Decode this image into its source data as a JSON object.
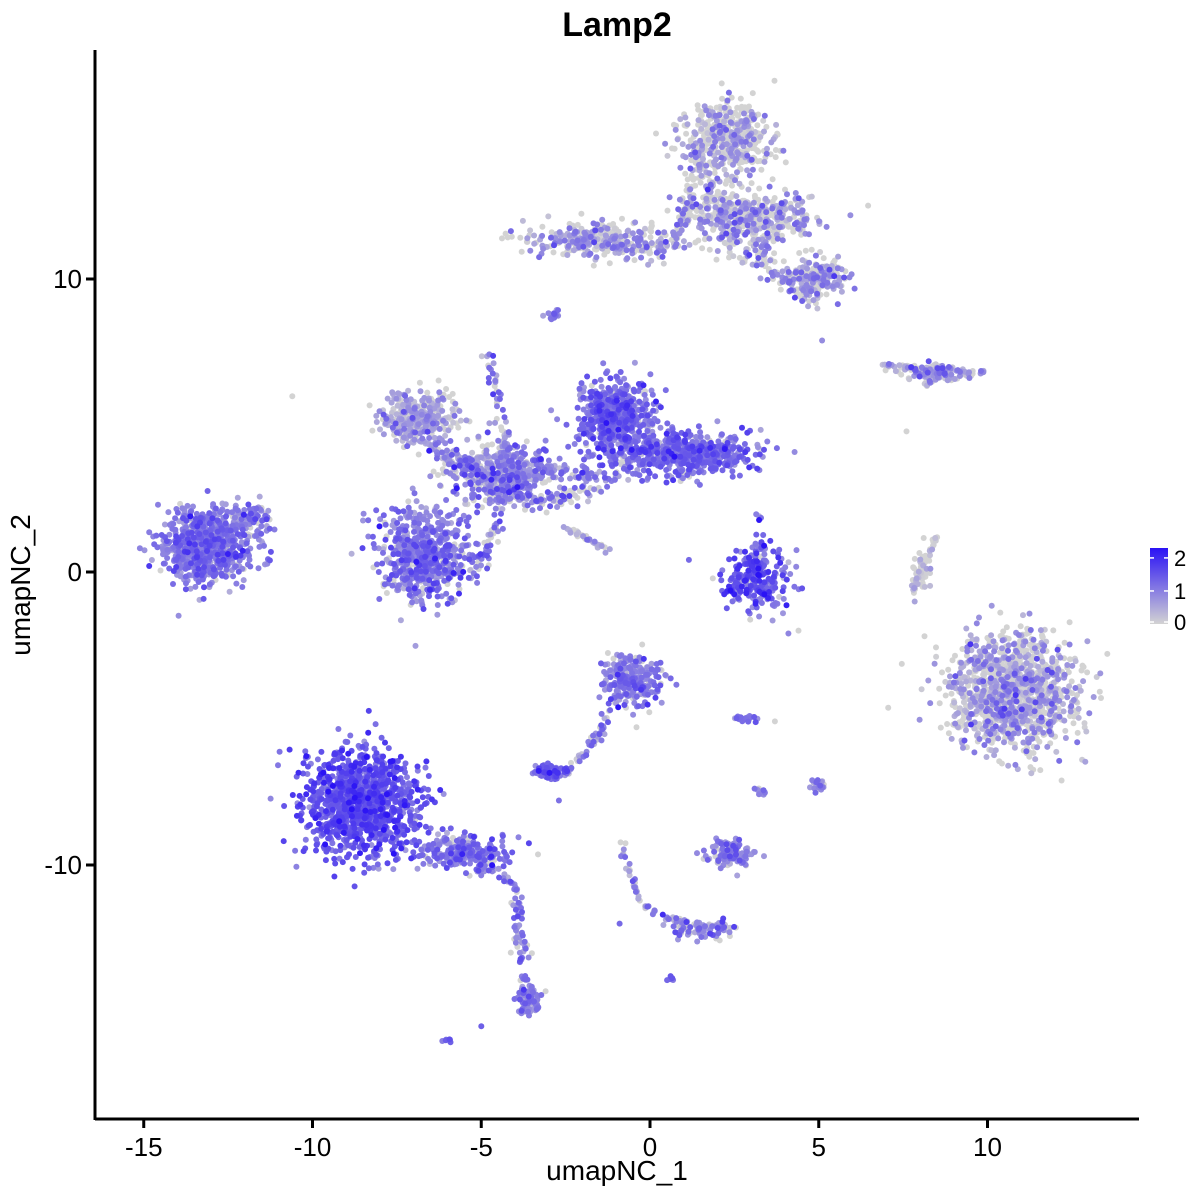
{
  "chart_data": {
    "type": "scatter",
    "title": "Lamp2",
    "xlabel": "umapNC_1",
    "ylabel": "umapNC_2",
    "xlim": [
      -16.5,
      14.5
    ],
    "ylim": [
      -17.8,
      17.5
    ],
    "x_ticks": [
      -15,
      -10,
      -5,
      0,
      5,
      10
    ],
    "x_tick_labels": [
      "-15",
      "-10",
      "-5",
      "0",
      "5",
      "10"
    ],
    "y_ticks": [
      -10,
      0,
      10
    ],
    "y_tick_labels": [
      "-10",
      "0",
      "10"
    ],
    "grid": false,
    "legend": {
      "position": "right",
      "title": "",
      "ticks": [
        0,
        1,
        2
      ],
      "tick_labels": [
        "0",
        "1",
        "2"
      ],
      "range": [
        0,
        2.3
      ],
      "color_low": "#d3d3d3",
      "color_high": "#2a12f5"
    },
    "point_color_low": "#d3d3d3",
    "point_color_high": "#2a12f5",
    "clusters": [
      {
        "name": "c1",
        "center": [
          -13.2,
          0.9
        ],
        "spread": [
          1.1,
          1.0
        ],
        "count": 700,
        "expr_mean": 1.05,
        "expr_sd": 0.35,
        "zero_frac": 0.04
      },
      {
        "name": "c2",
        "center": [
          -11.9,
          1.8
        ],
        "spread": [
          0.6,
          0.5
        ],
        "count": 90,
        "expr_mean": 0.95,
        "expr_sd": 0.35,
        "zero_frac": 0.05
      },
      {
        "name": "c3",
        "center": [
          -6.7,
          0.6
        ],
        "spread": [
          1.1,
          1.3
        ],
        "count": 650,
        "expr_mean": 1.05,
        "expr_sd": 0.4,
        "zero_frac": 0.1
      },
      {
        "name": "c4",
        "center": [
          -6.8,
          5.3
        ],
        "spread": [
          0.9,
          0.7
        ],
        "count": 320,
        "expr_mean": 0.55,
        "expr_sd": 0.35,
        "zero_frac": 0.35
      },
      {
        "name": "c5",
        "center": [
          -4.5,
          3.4
        ],
        "spread": [
          1.3,
          0.9
        ],
        "count": 420,
        "expr_mean": 0.9,
        "expr_sd": 0.45,
        "zero_frac": 0.25
      },
      {
        "name": "c6",
        "center": [
          -1.0,
          5.2
        ],
        "spread": [
          0.9,
          1.1
        ],
        "count": 600,
        "expr_mean": 1.2,
        "expr_sd": 0.35,
        "zero_frac": 0.05
      },
      {
        "name": "c7",
        "center": [
          1.3,
          4.0
        ],
        "spread": [
          1.5,
          0.6
        ],
        "count": 520,
        "expr_mean": 1.2,
        "expr_sd": 0.35,
        "zero_frac": 0.05
      },
      {
        "name": "c8",
        "center": [
          2.2,
          14.8
        ],
        "spread": [
          1.2,
          1.0
        ],
        "count": 420,
        "expr_mean": 0.6,
        "expr_sd": 0.4,
        "zero_frac": 0.55
      },
      {
        "name": "c9",
        "center": [
          3.0,
          12.0
        ],
        "spread": [
          1.6,
          0.8
        ],
        "count": 420,
        "expr_mean": 0.75,
        "expr_sd": 0.4,
        "zero_frac": 0.45
      },
      {
        "name": "c10",
        "center": [
          -1.5,
          11.3
        ],
        "spread": [
          1.7,
          0.5
        ],
        "count": 260,
        "expr_mean": 0.7,
        "expr_sd": 0.4,
        "zero_frac": 0.4
      },
      {
        "name": "c11",
        "center": [
          5.0,
          10.0
        ],
        "spread": [
          0.7,
          0.5
        ],
        "count": 180,
        "expr_mean": 0.75,
        "expr_sd": 0.4,
        "zero_frac": 0.4
      },
      {
        "name": "c12",
        "center": [
          3.2,
          -0.2
        ],
        "spread": [
          0.8,
          0.9
        ],
        "count": 220,
        "expr_mean": 1.3,
        "expr_sd": 0.45,
        "zero_frac": 0.05
      },
      {
        "name": "c13",
        "center": [
          -0.5,
          -3.7
        ],
        "spread": [
          0.7,
          0.7
        ],
        "count": 260,
        "expr_mean": 0.95,
        "expr_sd": 0.4,
        "zero_frac": 0.12
      },
      {
        "name": "c14",
        "center": [
          -3.0,
          -6.8
        ],
        "spread": [
          0.4,
          0.2
        ],
        "count": 70,
        "expr_mean": 1.3,
        "expr_sd": 0.35,
        "zero_frac": 0.05
      },
      {
        "name": "c15",
        "center": [
          -8.6,
          -7.9
        ],
        "spread": [
          1.4,
          1.5
        ],
        "count": 1100,
        "expr_mean": 1.45,
        "expr_sd": 0.35,
        "zero_frac": 0.01
      },
      {
        "name": "c16",
        "center": [
          -5.5,
          -9.6
        ],
        "spread": [
          1.2,
          0.5
        ],
        "count": 220,
        "expr_mean": 1.1,
        "expr_sd": 0.35,
        "zero_frac": 0.05
      },
      {
        "name": "c17",
        "center": [
          -3.6,
          -14.6
        ],
        "spread": [
          0.3,
          0.5
        ],
        "count": 70,
        "expr_mean": 0.95,
        "expr_sd": 0.35,
        "zero_frac": 0.1
      },
      {
        "name": "c18",
        "center": [
          2.4,
          -9.6
        ],
        "spread": [
          0.6,
          0.4
        ],
        "count": 120,
        "expr_mean": 0.95,
        "expr_sd": 0.4,
        "zero_frac": 0.15
      },
      {
        "name": "c19",
        "center": [
          1.5,
          -12.2
        ],
        "spread": [
          0.9,
          0.3
        ],
        "count": 70,
        "expr_mean": 0.9,
        "expr_sd": 0.4,
        "zero_frac": 0.15
      },
      {
        "name": "c20",
        "center": [
          10.8,
          -4.1
        ],
        "spread": [
          1.6,
          1.6
        ],
        "count": 1200,
        "expr_mean": 0.6,
        "expr_sd": 0.45,
        "zero_frac": 0.45
      },
      {
        "name": "c21",
        "center": [
          8.4,
          6.8
        ],
        "spread": [
          1.0,
          0.25
        ],
        "count": 90,
        "expr_mean": 0.75,
        "expr_sd": 0.45,
        "zero_frac": 0.3
      },
      {
        "name": "c22",
        "center": [
          8.1,
          0.1
        ],
        "spread": [
          0.2,
          0.6
        ],
        "count": 40,
        "expr_mean": 0.3,
        "expr_sd": 0.3,
        "zero_frac": 0.6
      },
      {
        "name": "c23",
        "center": [
          5.0,
          -7.3
        ],
        "spread": [
          0.2,
          0.2
        ],
        "count": 25,
        "expr_mean": 0.9,
        "expr_sd": 0.35,
        "zero_frac": 0.2
      },
      {
        "name": "c24",
        "center": [
          2.8,
          -5.0
        ],
        "spread": [
          0.3,
          0.1
        ],
        "count": 20,
        "expr_mean": 0.9,
        "expr_sd": 0.35,
        "zero_frac": 0.2
      },
      {
        "name": "c25",
        "center": [
          -2.9,
          8.8
        ],
        "spread": [
          0.2,
          0.15
        ],
        "count": 15,
        "expr_mean": 1.0,
        "expr_sd": 0.3,
        "zero_frac": 0.1
      },
      {
        "name": "c26",
        "center": [
          0.6,
          -13.9
        ],
        "spread": [
          0.08,
          0.08
        ],
        "count": 6,
        "expr_mean": 1.3,
        "expr_sd": 0.3,
        "zero_frac": 0.0
      },
      {
        "name": "c27",
        "center": [
          -6.0,
          -16.0
        ],
        "spread": [
          0.12,
          0.08
        ],
        "count": 6,
        "expr_mean": 1.3,
        "expr_sd": 0.3,
        "zero_frac": 0.0
      },
      {
        "name": "c28",
        "center": [
          3.3,
          -7.5
        ],
        "spread": [
          0.15,
          0.15
        ],
        "count": 12,
        "expr_mean": 1.0,
        "expr_sd": 0.3,
        "zero_frac": 0.1
      }
    ],
    "trails": [
      {
        "name": "t1",
        "points": [
          [
            -7.6,
            5.0
          ],
          [
            -5.3,
            3.5
          ],
          [
            -3.1,
            2.3
          ],
          [
            -1.4,
            3.0
          ],
          [
            0.2,
            4.6
          ]
        ],
        "count": 260,
        "width": 0.35,
        "expr_mean": 0.9,
        "expr_sd": 0.45,
        "zero_frac": 0.2
      },
      {
        "name": "t2",
        "points": [
          [
            -4.8,
            7.6
          ],
          [
            -4.2,
            4.0
          ],
          [
            -4.6,
            1.4
          ],
          [
            -5.4,
            -0.2
          ]
        ],
        "count": 120,
        "width": 0.2,
        "expr_mean": 0.9,
        "expr_sd": 0.45,
        "zero_frac": 0.15
      },
      {
        "name": "t3",
        "points": [
          [
            -4.4,
            2.5
          ],
          [
            -3.0,
            3.7
          ],
          [
            -1.5,
            3.2
          ]
        ],
        "count": 80,
        "width": 0.3,
        "expr_mean": 0.8,
        "expr_sd": 0.45,
        "zero_frac": 0.25
      },
      {
        "name": "t4",
        "points": [
          [
            -2.6,
            1.6
          ],
          [
            -1.2,
            0.7
          ]
        ],
        "count": 40,
        "width": 0.08,
        "expr_mean": 0.5,
        "expr_sd": 0.35,
        "zero_frac": 0.4
      },
      {
        "name": "t5",
        "points": [
          [
            -6.2,
            -9.1
          ],
          [
            -4.0,
            -10.6
          ],
          [
            -3.9,
            -12.5
          ],
          [
            -3.6,
            -15.0
          ]
        ],
        "count": 110,
        "width": 0.2,
        "expr_mean": 1.0,
        "expr_sd": 0.35,
        "zero_frac": 0.1
      },
      {
        "name": "t6",
        "points": [
          [
            -1.0,
            -4.2
          ],
          [
            -1.6,
            -5.8
          ],
          [
            -2.6,
            -6.9
          ]
        ],
        "count": 60,
        "width": 0.15,
        "expr_mean": 0.95,
        "expr_sd": 0.4,
        "zero_frac": 0.15
      },
      {
        "name": "t7",
        "points": [
          [
            -0.9,
            -9.2
          ],
          [
            -0.3,
            -11.3
          ],
          [
            0.5,
            -11.8
          ],
          [
            2.3,
            -12.2
          ]
        ],
        "count": 70,
        "width": 0.12,
        "expr_mean": 0.85,
        "expr_sd": 0.4,
        "zero_frac": 0.2
      },
      {
        "name": "t8",
        "points": [
          [
            -2.9,
            11.4
          ],
          [
            0.5,
            11.0
          ],
          [
            1.0,
            12.0
          ],
          [
            1.5,
            14.5
          ]
        ],
        "count": 160,
        "width": 0.25,
        "expr_mean": 0.7,
        "expr_sd": 0.4,
        "zero_frac": 0.45
      },
      {
        "name": "t9",
        "points": [
          [
            1.6,
            13.5
          ],
          [
            2.6,
            11.2
          ],
          [
            3.7,
            10.3
          ],
          [
            4.7,
            9.2
          ]
        ],
        "count": 150,
        "width": 0.4,
        "expr_mean": 0.75,
        "expr_sd": 0.4,
        "zero_frac": 0.45
      },
      {
        "name": "t10",
        "points": [
          [
            3.2,
            2.0
          ],
          [
            3.4,
            0.5
          ],
          [
            2.3,
            -0.6
          ],
          [
            4.2,
            -0.9
          ]
        ],
        "count": 60,
        "width": 0.2,
        "expr_mean": 1.2,
        "expr_sd": 0.45,
        "zero_frac": 0.1
      },
      {
        "name": "t11",
        "points": [
          [
            6.7,
            7.1
          ],
          [
            8.4,
            6.9
          ],
          [
            10.0,
            6.8
          ]
        ],
        "count": 50,
        "width": 0.12,
        "expr_mean": 0.75,
        "expr_sd": 0.45,
        "zero_frac": 0.3
      },
      {
        "name": "t12",
        "points": [
          [
            8.0,
            6.2
          ],
          [
            8.6,
            6.7
          ]
        ],
        "count": 12,
        "width": 0.08,
        "expr_mean": 0.8,
        "expr_sd": 0.4,
        "zero_frac": 0.3
      },
      {
        "name": "t13",
        "points": [
          [
            8.5,
            1.2
          ],
          [
            7.8,
            -0.5
          ],
          [
            7.9,
            -1.0
          ]
        ],
        "count": 40,
        "width": 0.08,
        "expr_mean": 0.3,
        "expr_sd": 0.3,
        "zero_frac": 0.6
      }
    ],
    "outliers": [
      [
        -10.6,
        6.0
      ],
      [
        -12.5,
        -0.1
      ],
      [
        4.4,
        -2.0
      ],
      [
        5.1,
        7.9
      ],
      [
        7.6,
        4.8
      ],
      [
        -0.9,
        -12.0
      ],
      [
        -5.0,
        -15.5
      ],
      [
        -0.4,
        -5.3
      ],
      [
        4.1,
        -2.1
      ],
      [
        3.7,
        -5.1
      ],
      [
        -2.7,
        -7.8
      ]
    ]
  }
}
